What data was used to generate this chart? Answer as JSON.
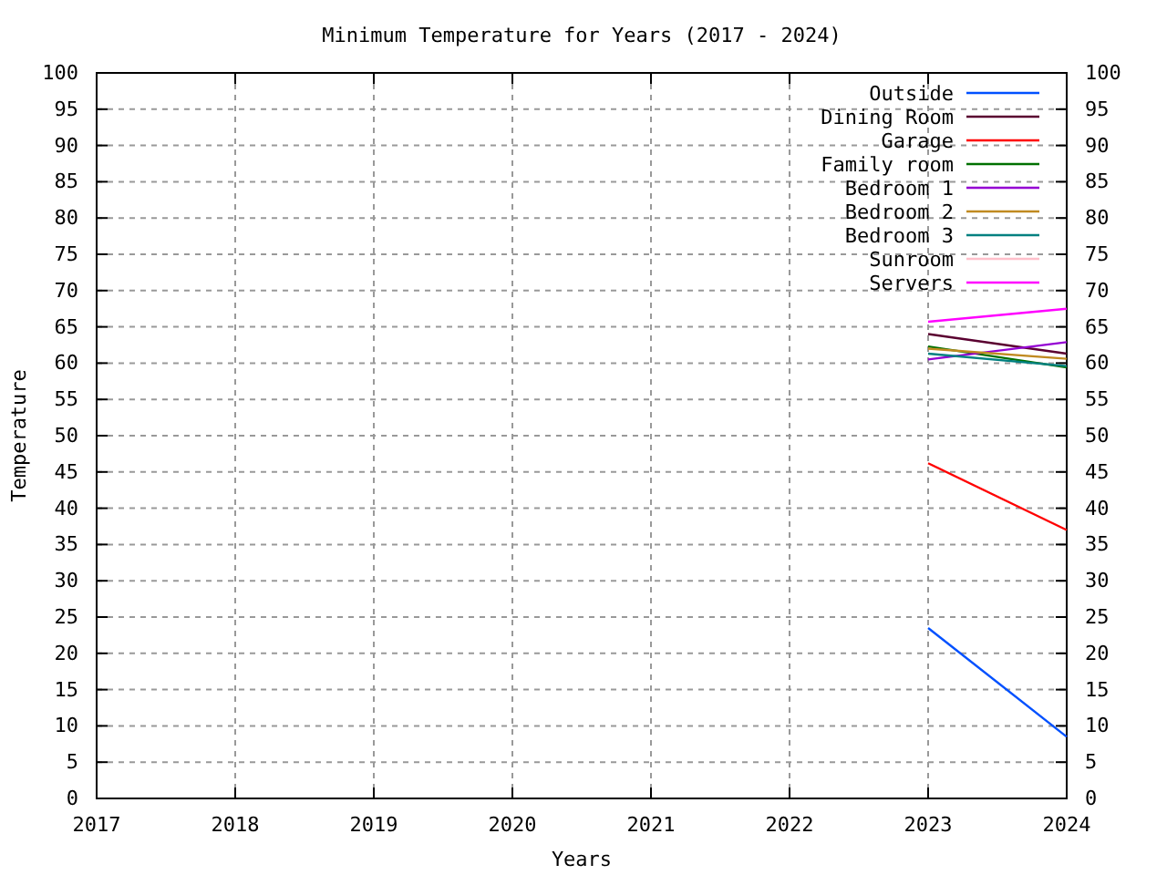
{
  "chart_data": {
    "type": "line",
    "title": "Minimum Temperature for Years (2017 - 2024)",
    "xlabel": "Years",
    "ylabel": "Temperature",
    "x": [
      2023,
      2024
    ],
    "series": [
      {
        "name": "Outside",
        "color": "#0050ff",
        "values": [
          23.5,
          8.5
        ]
      },
      {
        "name": "Dining Room",
        "color": "#5a0030",
        "values": [
          64.0,
          61.3
        ]
      },
      {
        "name": "Garage",
        "color": "#ff0000",
        "values": [
          46.2,
          37.0
        ]
      },
      {
        "name": "Family room",
        "color": "#007000",
        "values": [
          62.3,
          59.4
        ]
      },
      {
        "name": "Bedroom 1",
        "color": "#9400d3",
        "values": [
          60.5,
          62.9
        ]
      },
      {
        "name": "Bedroom 2",
        "color": "#c08a20",
        "values": [
          62.0,
          60.6
        ]
      },
      {
        "name": "Bedroom 3",
        "color": "#008080",
        "values": [
          61.3,
          59.6
        ]
      },
      {
        "name": "Sunroom",
        "color": "#ffc0cb",
        "values": [
          null,
          null
        ]
      },
      {
        "name": "Servers",
        "color": "#ff00ff",
        "values": [
          65.7,
          67.5
        ]
      }
    ],
    "xlim": [
      2017,
      2024
    ],
    "xticks": [
      2017,
      2018,
      2019,
      2020,
      2021,
      2022,
      2023,
      2024
    ],
    "ylim": [
      0,
      100
    ],
    "yticks": [
      0,
      5,
      10,
      15,
      20,
      25,
      30,
      35,
      40,
      45,
      50,
      55,
      60,
      65,
      70,
      75,
      80,
      85,
      90,
      95,
      100
    ],
    "y2lim": [
      0,
      100
    ],
    "y2ticks": [
      0,
      5,
      10,
      15,
      20,
      25,
      30,
      35,
      40,
      45,
      50,
      55,
      60,
      65,
      70,
      75,
      80,
      85,
      90,
      95,
      100
    ],
    "grid": true,
    "legend": "top right",
    "marker": "none",
    "line_style": "solid"
  }
}
